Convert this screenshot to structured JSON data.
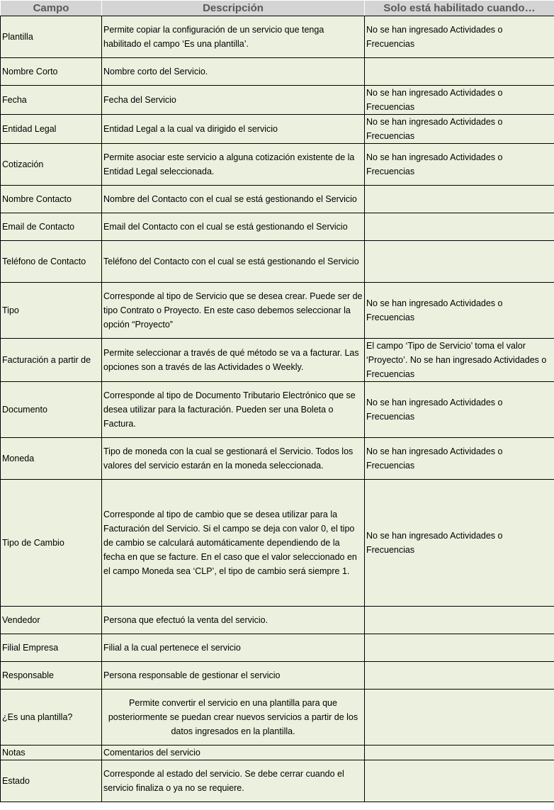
{
  "headers": [
    "Campo",
    "Descripción",
    "Solo está habilitado cuando…"
  ],
  "rows": [
    {
      "campo": "Plantilla",
      "desc": "Permite copiar la configuración de un servicio que tenga habilitado el campo ‘Es una plantilla’.",
      "cond": "No se han ingresado Actividades o Frecuencias",
      "h": 60
    },
    {
      "campo": "Nombre Corto",
      "desc": "Nombre corto del Servicio.",
      "cond": "",
      "h": 40
    },
    {
      "campo": "Fecha",
      "desc": "Fecha del Servicio",
      "cond": "No se han ingresado Actividades o Frecuencias",
      "h": 40
    },
    {
      "campo": "Entidad Legal",
      "desc": "Entidad Legal a la cual va dirigido el servicio",
      "cond": "No se han ingresado Actividades o Frecuencias",
      "h": 40
    },
    {
      "campo": "Cotización",
      "desc": "Permite asociar este servicio a alguna cotización existente de la Entidad Legal seleccionada.",
      "cond": "No se han ingresado Actividades o Frecuencias",
      "h": 60
    },
    {
      "campo": "Nombre Contacto",
      "desc": "Nombre del Contacto con el cual se está gestionando el Servicio",
      "cond": "",
      "h": 40
    },
    {
      "campo": "Email de Contacto",
      "desc": "Email del Contacto con el cual se está gestionando el Servicio",
      "cond": "",
      "h": 40
    },
    {
      "campo": "Teléfono de Contacto",
      "desc": "Teléfono del Contacto con el cual se está gestionando el Servicio",
      "cond": "",
      "h": 60
    },
    {
      "campo": "Tipo",
      "desc": "Corresponde al tipo de Servicio que se desea crear. Puede ser de tipo Contrato o Proyecto. En este caso debemos seleccionar la opción “Proyecto”",
      "cond": "No se han ingresado Actividades o Frecuencias",
      "h": 80
    },
    {
      "campo": "Facturación a partir de",
      "desc": "Permite seleccionar a través de qué método se va a facturar. Las opciones son a través de las Actividades o Weekly.",
      "cond": "El campo ‘Tipo de Servicio’ toma el valor ‘Proyecto’. No se han ingresado Actividades o Frecuencias",
      "h": 60
    },
    {
      "campo": "Documento",
      "desc": "Corresponde al tipo de Documento Tributario Electrónico que se desea utilizar para la facturación. Pueden ser una Boleta o Factura.",
      "cond": "No se han ingresado Actividades o Frecuencias",
      "h": 80
    },
    {
      "campo": "Moneda",
      "desc": "Tipo de moneda con la cual se gestionará el Servicio. Todos los valores del servicio estarán en la moneda seleccionada.",
      "cond": "No se han ingresado Actividades o Frecuencias",
      "h": 60
    },
    {
      "campo": "Tipo de Cambio",
      "desc": "Corresponde al tipo de cambio que se desea utilizar para la Facturación del Servicio. Si el campo se deja con valor 0, el tipo de cambio se calculará automáticamente dependiendo de la fecha en que se facture. En el caso que el valor seleccionado en el campo Moneda sea ‘CLP’, el tipo de cambio será siempre 1.",
      "cond": "No se han ingresado Actividades o Frecuencias",
      "h": 180
    },
    {
      "campo": "Vendedor",
      "desc": "Persona que efectuó la venta del servicio.",
      "cond": "",
      "h": 40
    },
    {
      "campo": "Filial Empresa",
      "desc": "Filial a la cual pertenece el servicio",
      "cond": "",
      "h": 40
    },
    {
      "campo": "Responsable",
      "desc": "Persona responsable de gestionar el servicio",
      "cond": "",
      "h": 40
    },
    {
      "campo": "¿Es una plantilla?",
      "desc": "Permite convertir el servicio en una plantilla para que posteriormente se puedan crear nuevos servicios a partir de los datos ingresados en la plantilla.",
      "cond": "",
      "h": 80,
      "center": true
    },
    {
      "campo": "Notas",
      "desc": "Comentarios del servicio",
      "cond": "",
      "h": 20
    },
    {
      "campo": "Estado",
      "desc": "Corresponde al estado del servicio. Se debe cerrar cuando el servicio finaliza o ya no se requiere.",
      "cond": "",
      "h": 60
    }
  ]
}
